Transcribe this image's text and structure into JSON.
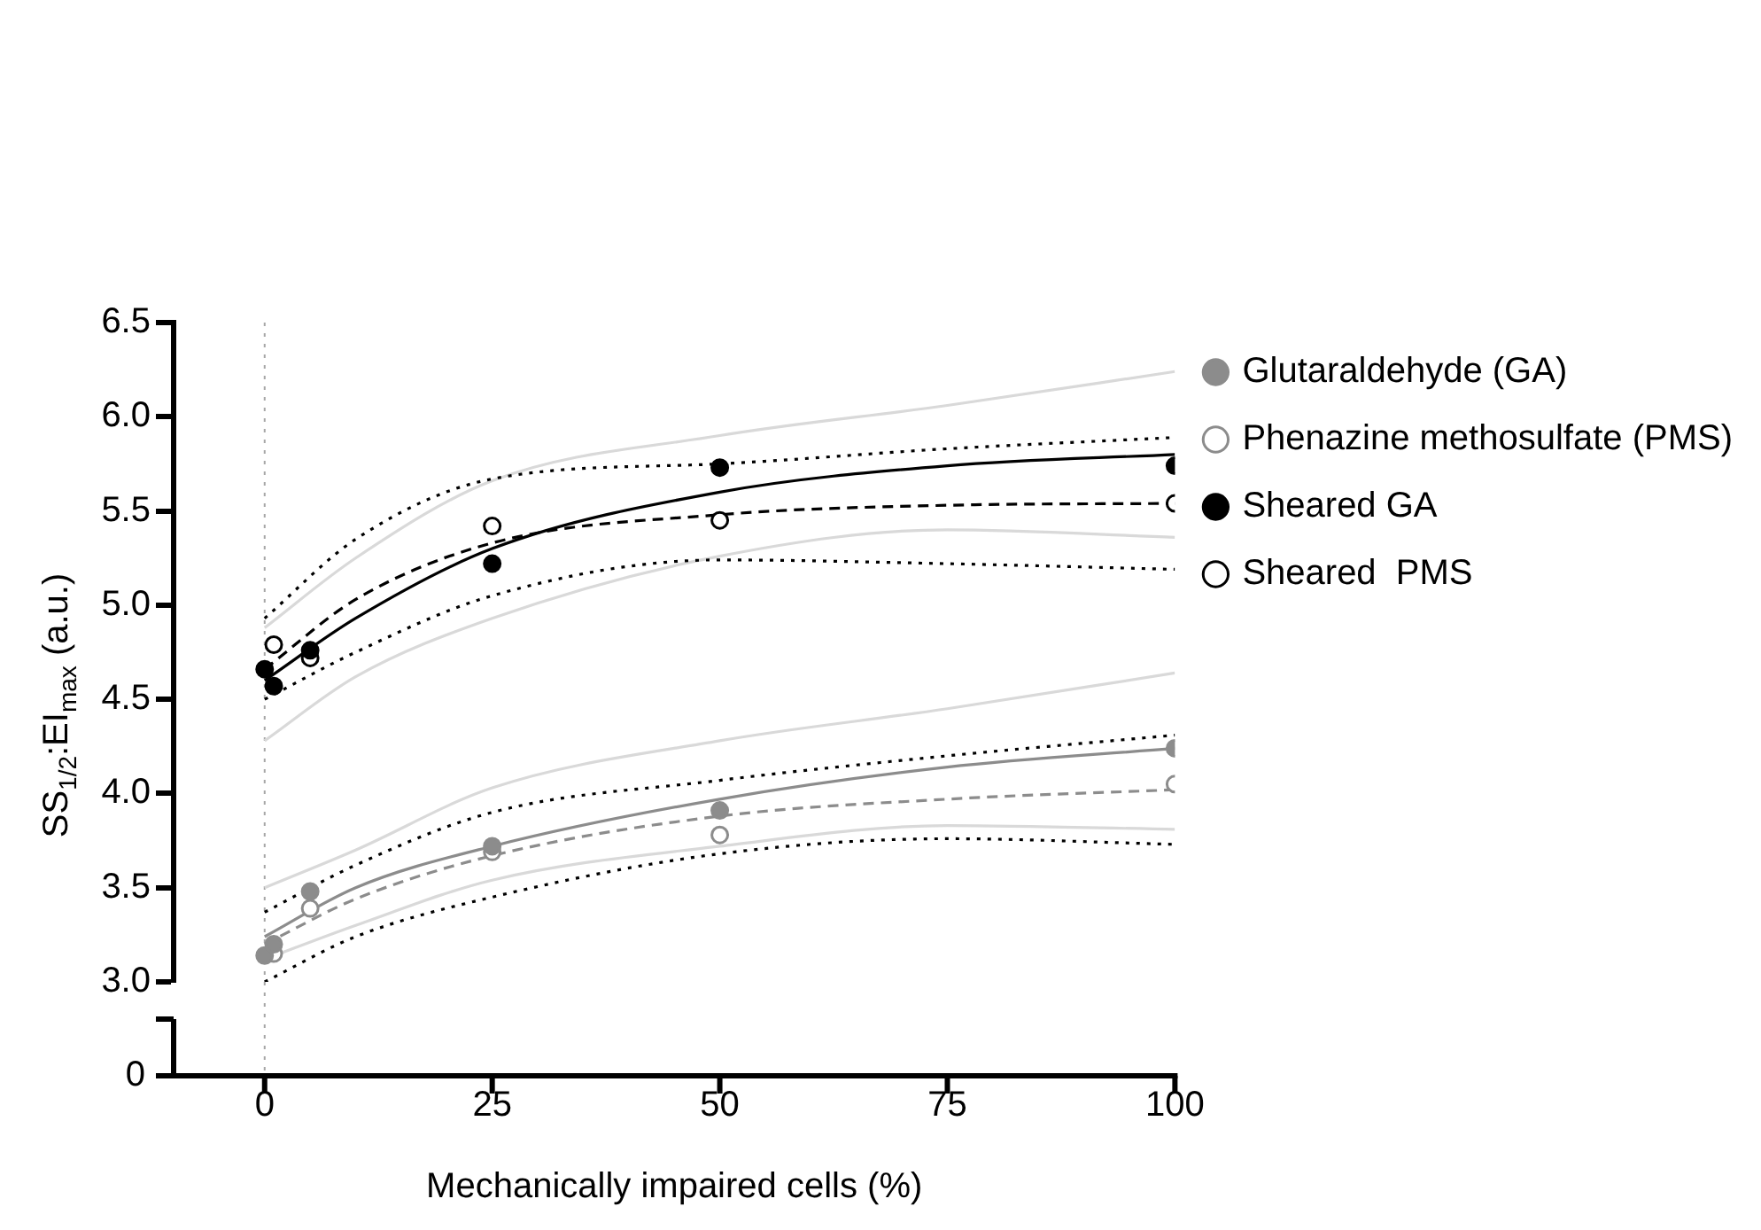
{
  "chart_data": {
    "type": "scatter",
    "ylabel": "SS$_{1/2}$:EI$_{max}$ (a.u.)",
    "xlabel": "Mechanically impaired cells (%)",
    "xlim": [
      -10,
      100
    ],
    "xticks": [
      0,
      25,
      50,
      75,
      100
    ],
    "ylim": [
      3,
      6.5
    ],
    "yticks": [
      {
        "value": 3,
        "label": "3.0"
      },
      3.5,
      {
        "value": 4,
        "label": "4.0"
      },
      4.5,
      {
        "value": 5,
        "label": "5.0"
      },
      5.5,
      {
        "value": 6,
        "label": "6.0"
      },
      6.5
    ],
    "grid": false,
    "legend": "top right",
    "marker": "circle",
    "annotations": [
      "0"
    ],
    "ref_lines": [
      {
        "axis": "x",
        "value": 0,
        "color": "#a6a6a6",
        "line_style": "dotted"
      }
    ],
    "series": [
      {
        "name": "Glutaraldehyde (GA)",
        "color": "#8c8c8c",
        "line_style": "solid",
        "x": [
          0,
          1,
          5,
          25,
          50,
          100
        ],
        "values": [
          3.14,
          3.2,
          3.48,
          3.72,
          3.91,
          4.24
        ]
      },
      {
        "name": "Phenazine methosulfate (PMS)",
        "color": "#8c8c8c",
        "line_style": "dashed",
        "x": [
          1,
          5,
          25,
          50,
          100
        ],
        "values": [
          3.15,
          3.39,
          3.69,
          3.78,
          4.05
        ]
      },
      {
        "name": "Sheared GA",
        "color": "#000000",
        "line_style": "solid",
        "x": [
          0,
          1,
          5,
          25,
          50,
          100
        ],
        "values": [
          4.66,
          4.57,
          4.76,
          5.22,
          5.73,
          5.74
        ]
      },
      {
        "name": "Sheared  PMS",
        "color": "#000000",
        "line_style": "dashed",
        "x": [
          1,
          5,
          25,
          50,
          100
        ],
        "values": [
          4.79,
          4.72,
          5.42,
          5.45,
          5.54
        ]
      },
      {
        "type": "line",
        "color": "#8c8c8c",
        "line_style": "solid",
        "marker": "none",
        "x": [
          0,
          10,
          25,
          50,
          75,
          100
        ],
        "values": [
          3.24,
          3.5,
          3.72,
          3.97,
          4.14,
          4.24
        ]
      },
      {
        "type": "line",
        "color": "#8c8c8c",
        "line_style": "dashed",
        "marker": "none",
        "x": [
          0,
          10,
          25,
          50,
          75,
          100
        ],
        "values": [
          3.2,
          3.44,
          3.67,
          3.88,
          3.97,
          4.02
        ]
      },
      {
        "type": "line",
        "color": "#000000",
        "line_style": "solid",
        "marker": "none",
        "x": [
          0,
          10,
          25,
          50,
          75,
          100
        ],
        "values": [
          4.6,
          4.93,
          5.3,
          5.6,
          5.74,
          5.8
        ]
      },
      {
        "type": "line",
        "color": "#000000",
        "line_style": "dashed",
        "marker": "none",
        "x": [
          0,
          10,
          25,
          50,
          75,
          100
        ],
        "values": [
          4.66,
          5.03,
          5.33,
          5.48,
          5.53,
          5.54
        ]
      },
      {
        "type": "line",
        "color": "#000000",
        "line_style": "dotted",
        "marker": "none",
        "x": [
          0,
          10,
          25,
          50,
          75,
          100
        ],
        "values": [
          3.37,
          3.62,
          3.9,
          4.07,
          4.2,
          4.31
        ]
      },
      {
        "type": "line",
        "color": "#000000",
        "line_style": "dotted",
        "marker": "none",
        "x": [
          0,
          10,
          25,
          50,
          75,
          100
        ],
        "values": [
          3.0,
          3.24,
          3.45,
          3.68,
          3.76,
          3.73
        ]
      },
      {
        "type": "line",
        "color": "#d9d9d9",
        "line_style": "solid",
        "marker": "none",
        "x": [
          0,
          10,
          25,
          50,
          75,
          100
        ],
        "values": [
          3.5,
          3.7,
          4.03,
          4.28,
          4.45,
          4.64
        ]
      },
      {
        "type": "line",
        "color": "#d9d9d9",
        "line_style": "solid",
        "marker": "none",
        "x": [
          0,
          10,
          25,
          50,
          75,
          100
        ],
        "values": [
          3.12,
          3.3,
          3.54,
          3.72,
          3.83,
          3.81
        ]
      },
      {
        "type": "line",
        "color": "#000000",
        "line_style": "dotted",
        "marker": "none",
        "x": [
          0,
          10,
          25,
          50,
          75,
          100
        ],
        "values": [
          4.93,
          5.35,
          5.67,
          5.75,
          5.83,
          5.89
        ]
      },
      {
        "type": "line",
        "color": "#000000",
        "line_style": "dotted",
        "marker": "none",
        "x": [
          0,
          10,
          25,
          50,
          75,
          100
        ],
        "values": [
          4.5,
          4.75,
          5.05,
          5.24,
          5.22,
          5.19
        ]
      },
      {
        "type": "line",
        "color": "#d9d9d9",
        "line_style": "solid",
        "marker": "none",
        "x": [
          0,
          10,
          25,
          50,
          75,
          100
        ],
        "values": [
          4.88,
          5.25,
          5.66,
          5.9,
          6.06,
          6.24
        ]
      },
      {
        "type": "line",
        "color": "#d9d9d9",
        "line_style": "solid",
        "marker": "none",
        "x": [
          0,
          10,
          25,
          50,
          75,
          100
        ],
        "values": [
          4.28,
          4.62,
          4.93,
          5.26,
          5.4,
          5.36
        ]
      }
    ]
  }
}
